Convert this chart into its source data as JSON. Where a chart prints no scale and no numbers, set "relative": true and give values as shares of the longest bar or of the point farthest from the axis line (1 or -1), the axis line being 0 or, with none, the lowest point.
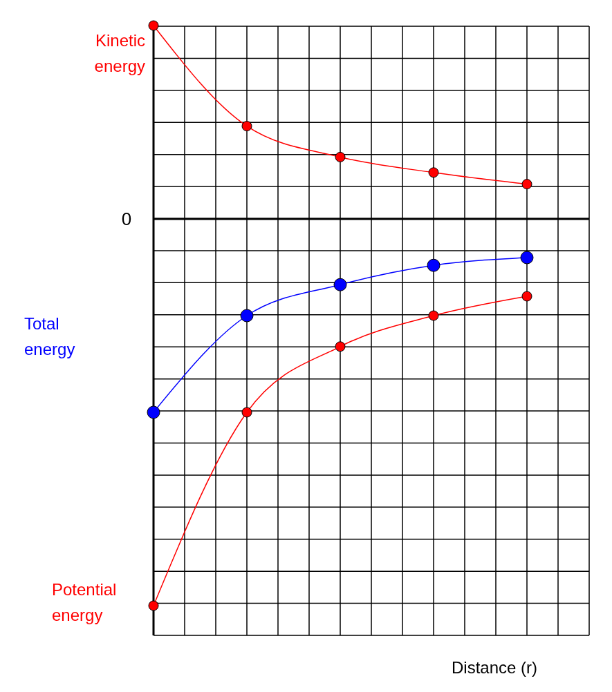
{
  "chart_data": {
    "type": "line",
    "relative": true,
    "xlabel": "Distance (r)",
    "annotations": [
      "0"
    ],
    "grid": true,
    "marker": "circle",
    "line_style": "solid",
    "categories": [
      null,
      null,
      null,
      null,
      null
    ],
    "series": [
      {
        "name": "Kinetic energy",
        "color": "#ff0000",
        "values": [
          0.5,
          0.24,
          0.16,
          0.12,
          0.09
        ]
      },
      {
        "name": "Total energy",
        "color": "#0000ff",
        "values": [
          -0.5,
          -0.25,
          -0.17,
          -0.12,
          -0.1
        ]
      },
      {
        "name": "Potential energy",
        "color": "#ff0000",
        "values": [
          -1,
          -0.5,
          -0.33,
          -0.25,
          -0.2
        ]
      }
    ]
  }
}
